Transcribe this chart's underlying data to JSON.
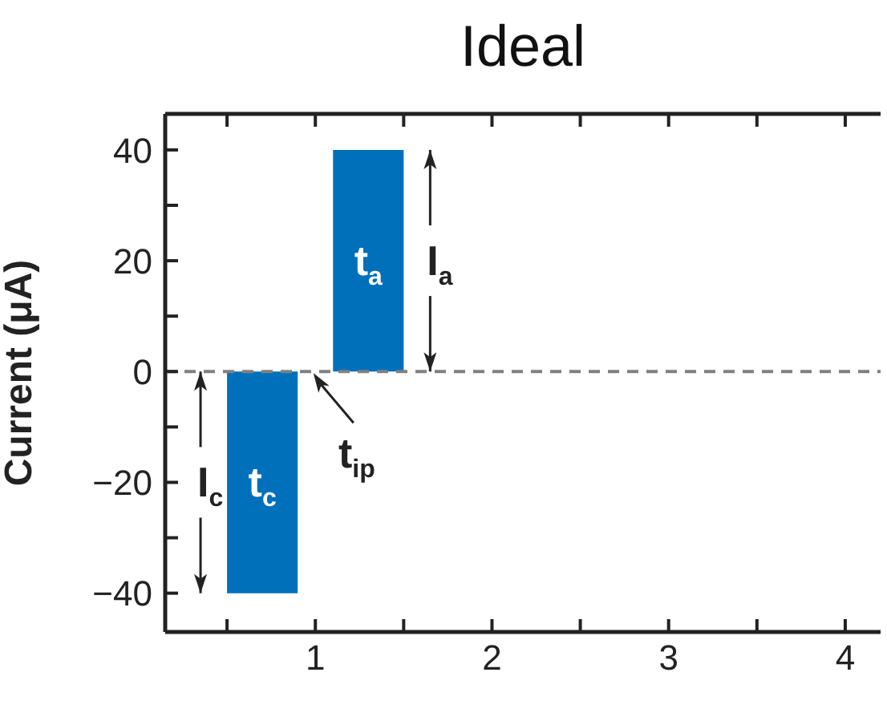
{
  "chart_data": {
    "type": "histogram",
    "title": "Ideal",
    "ylabel": "Current (μA)",
    "bins": [
      0.5,
      0.9,
      1.1,
      1.5
    ],
    "values": [
      -40,
      0,
      40
    ],
    "color": "#0070bb",
    "value_labels": [
      "t$_{c}$",
      null,
      "t$_{a}$"
    ],
    "xlim": [
      0.15,
      4.2
    ],
    "xticks": [
      {
        "value": 0.5,
        "label": null
      },
      1,
      {
        "value": 1.5,
        "label": null
      },
      2,
      {
        "value": 2.5,
        "label": null
      },
      3,
      {
        "value": 3.5,
        "label": null
      },
      4
    ],
    "ylim": [
      -47,
      46.5
    ],
    "yticks": [
      {
        "value": -40,
        "label": "−40"
      },
      {
        "value": -30,
        "label": null
      },
      {
        "value": -20,
        "label": "−20"
      },
      {
        "value": -10,
        "label": null
      },
      0,
      {
        "value": 10,
        "label": null
      },
      20,
      {
        "value": 30,
        "label": null
      },
      40
    ],
    "ref_lines": [
      {
        "axis": "y",
        "value": 0,
        "color": "#808080",
        "line_style": "dashed"
      }
    ],
    "annotations": [
      {
        "text": "I$_{a}$",
        "x": 1.3,
        "y": 40
      },
      {
        "text": "I$_{c}$",
        "x": 0.7,
        "y": -40
      },
      {
        "text": "t$_{ip}$",
        "x": 0.98,
        "y": 0
      }
    ],
    "grid": false
  }
}
